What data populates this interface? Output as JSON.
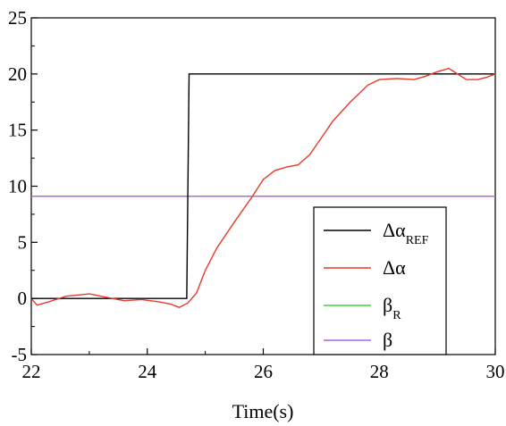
{
  "chart_data": {
    "type": "line",
    "xlabel": "Time(s)",
    "ylabel": "",
    "xlim": [
      22,
      30
    ],
    "ylim": [
      -5,
      25
    ],
    "xticks": [
      22,
      24,
      26,
      28,
      30
    ],
    "yticks": [
      -5,
      0,
      5,
      10,
      15,
      20,
      25
    ],
    "grid": false,
    "legend_position": "bottom-right",
    "series": [
      {
        "name": "Δα",
        "name_sub": "REF",
        "color": "#000000",
        "points": [
          [
            22,
            0
          ],
          [
            24.68,
            0
          ],
          [
            24.72,
            20
          ],
          [
            30,
            20
          ]
        ]
      },
      {
        "name": "Δα",
        "name_sub": "",
        "color": "#e8392c",
        "points": [
          [
            22,
            0
          ],
          [
            22.1,
            -0.6
          ],
          [
            22.3,
            -0.3
          ],
          [
            22.6,
            0.2
          ],
          [
            23.0,
            0.4
          ],
          [
            23.3,
            0.1
          ],
          [
            23.6,
            -0.2
          ],
          [
            23.9,
            -0.1
          ],
          [
            24.2,
            -0.3
          ],
          [
            24.4,
            -0.5
          ],
          [
            24.55,
            -0.8
          ],
          [
            24.7,
            -0.4
          ],
          [
            24.85,
            0.5
          ],
          [
            25.0,
            2.5
          ],
          [
            25.2,
            4.5
          ],
          [
            25.5,
            6.8
          ],
          [
            25.8,
            9.0
          ],
          [
            26.0,
            10.6
          ],
          [
            26.2,
            11.4
          ],
          [
            26.4,
            11.7
          ],
          [
            26.6,
            11.9
          ],
          [
            26.8,
            12.8
          ],
          [
            27.0,
            14.3
          ],
          [
            27.2,
            15.8
          ],
          [
            27.5,
            17.5
          ],
          [
            27.8,
            19.0
          ],
          [
            28.0,
            19.5
          ],
          [
            28.3,
            19.6
          ],
          [
            28.6,
            19.5
          ],
          [
            28.8,
            19.8
          ],
          [
            29.0,
            20.2
          ],
          [
            29.2,
            20.5
          ],
          [
            29.35,
            20.0
          ],
          [
            29.5,
            19.5
          ],
          [
            29.7,
            19.5
          ],
          [
            29.85,
            19.7
          ],
          [
            30.0,
            20.0
          ]
        ]
      },
      {
        "name": "β",
        "name_sub": "R",
        "color": "#3fd13f",
        "points": [
          [
            22,
            9.1
          ],
          [
            30,
            9.1
          ]
        ]
      },
      {
        "name": "β",
        "name_sub": "",
        "color": "#b060e0",
        "points": [
          [
            22,
            9.1
          ],
          [
            30,
            9.1
          ]
        ]
      }
    ]
  }
}
